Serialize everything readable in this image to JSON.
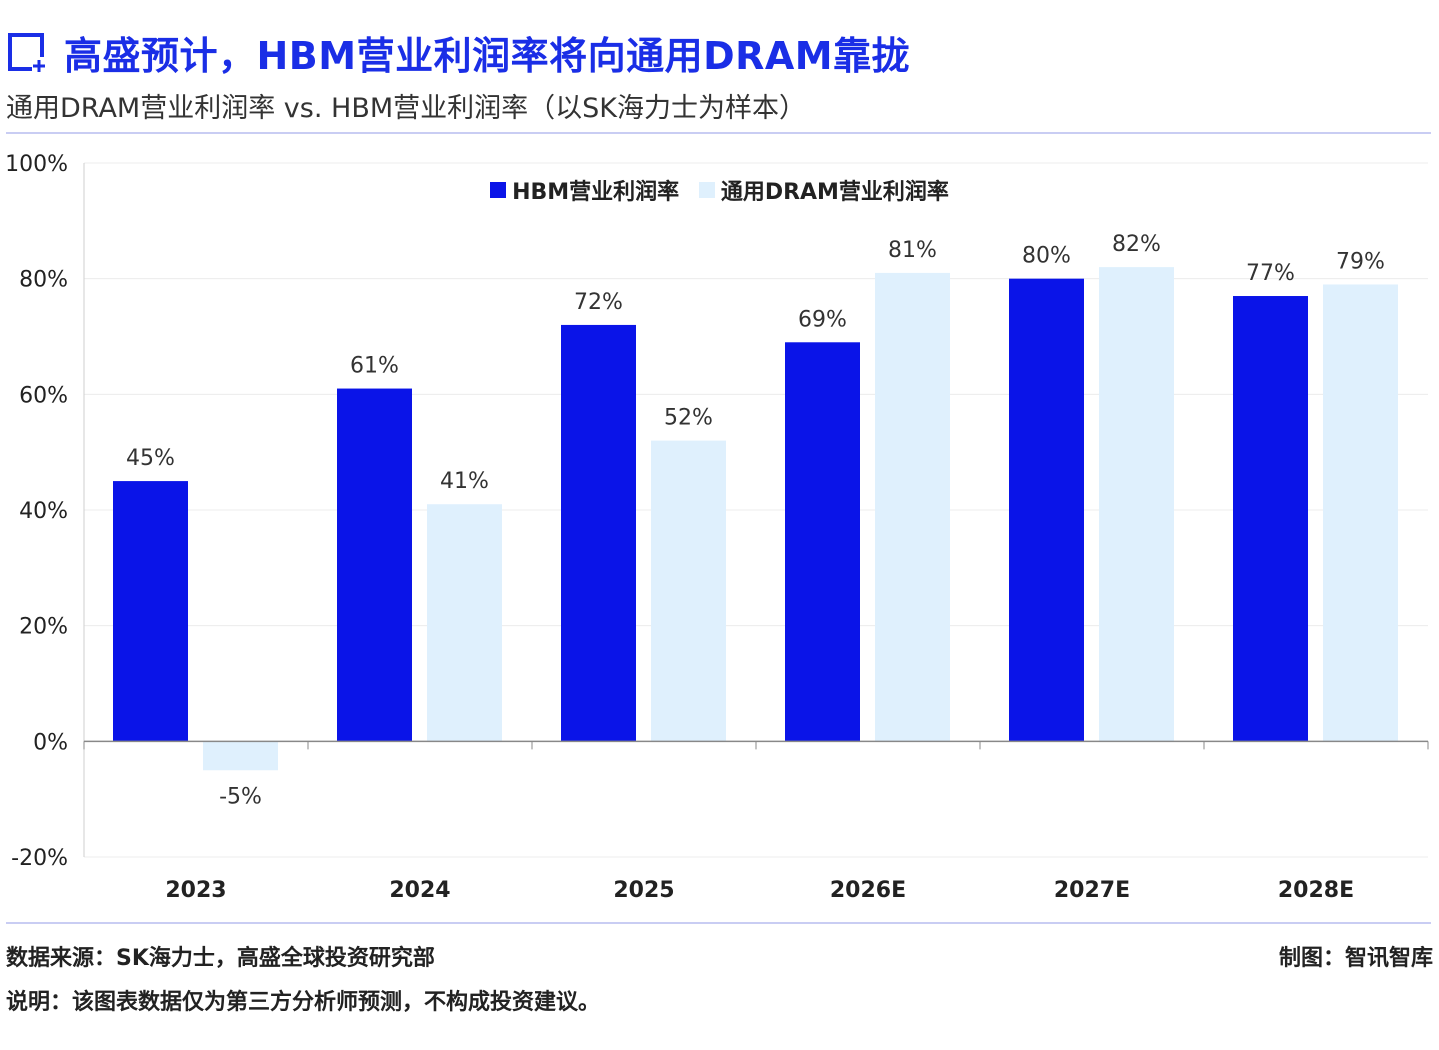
{
  "header": {
    "title": "高盛预计，HBM营业利润率将向通用DRAM靠拢",
    "subtitle": "通用DRAM营业利润率 vs. HBM营业利润率（以SK海力士为样本）"
  },
  "chart_data": {
    "type": "bar",
    "categories": [
      "2023",
      "2024",
      "2025",
      "2026E",
      "2027E",
      "2028E"
    ],
    "series": [
      {
        "name": "HBM营业利润率",
        "values": [
          45,
          61,
          72,
          69,
          80,
          77
        ],
        "color": "#0a14e8"
      },
      {
        "name": "通用DRAM营业利润率",
        "values": [
          -5,
          41,
          52,
          81,
          82,
          79
        ],
        "color": "#dff0fd"
      }
    ],
    "data_labels": [
      [
        "45%",
        "61%",
        "72%",
        "69%",
        "80%",
        "77%"
      ],
      [
        "-5%",
        "41%",
        "52%",
        "81%",
        "82%",
        "79%"
      ]
    ],
    "y_ticks": [
      100,
      80,
      60,
      40,
      20,
      0,
      -20
    ],
    "y_tick_labels": [
      "100%",
      "80%",
      "60%",
      "40%",
      "20%",
      "0%",
      "-20%"
    ],
    "ylim": [
      -20,
      100
    ],
    "grid": true,
    "legend_position": "top-center",
    "title": "",
    "xlabel": "",
    "ylabel": ""
  },
  "footer": {
    "source": "数据来源：SK海力士，高盛全球投资研究部",
    "note": "说明：该图表数据仅为第三方分析师预测，不构成投资建议。",
    "credit": "制图：智讯智库"
  },
  "icons": {
    "title_icon": "chart-box-plus-icon"
  },
  "colors": {
    "accent": "#1a2ee6",
    "hbm": "#0a14e8",
    "dram": "#dff0fd"
  }
}
